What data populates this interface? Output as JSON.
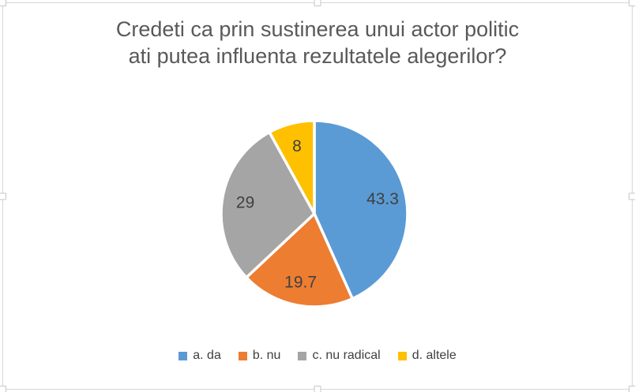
{
  "chart_data": {
    "type": "pie",
    "title": "Credeti ca prin sustinerea unui actor politic ati putea influenta rezultatele alegerilor?",
    "title_lines": [
      "Credeti ca prin sustinerea unui actor politic",
      "ati putea influenta rezultatele alegerilor?"
    ],
    "categories": [
      "a. da",
      "b. nu",
      "c. nu radical",
      "d. altele"
    ],
    "values": [
      43.3,
      19.7,
      29,
      8
    ],
    "data_labels": [
      "43.3",
      "19.7",
      "29",
      "8"
    ],
    "colors": [
      "#5B9BD5",
      "#ED7D31",
      "#A5A5A5",
      "#FFC000"
    ],
    "start_angle_deg": 0,
    "direction": "clockwise",
    "legend_position": "bottom",
    "slice_gap_color": "#FFFFFF",
    "title_color": "#595959",
    "label_color": "#404040",
    "legend_text_color": "#404040"
  }
}
